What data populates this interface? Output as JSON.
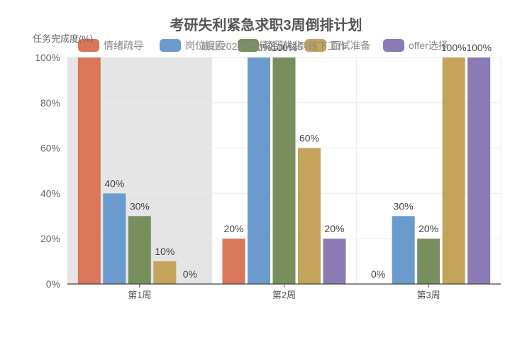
{
  "chart_data": {
    "type": "bar",
    "title": "考研失利紧急求职3周倒排计划",
    "ylabel": "任务完成度(%)",
    "xlabel": "",
    "categories": [
      "第1周",
      "第2周",
      "第3周"
    ],
    "ylim": [
      0,
      100
    ],
    "yticks": [
      "0%",
      "20%",
      "40%",
      "60%",
      "80%",
      "100%"
    ],
    "grid": true,
    "legend_position": "top",
    "highlight_category": "第1周",
    "annotation": "截止2026年5月底前找到线下工作",
    "series": [
      {
        "name": "情绪疏导",
        "values": [
          100,
          20,
          0
        ],
        "color": "#d9775a",
        "labels": [
          "",
          "20%",
          "0%"
        ]
      },
      {
        "name": "岗位搜索",
        "values": [
          40,
          100,
          30
        ],
        "color": "#6a9bcc",
        "labels": [
          "40%",
          "100%",
          "30%"
        ]
      },
      {
        "name": "简历优化",
        "values": [
          30,
          100,
          20
        ],
        "color": "#788f5d",
        "labels": [
          "30%",
          "100%",
          "20%"
        ]
      },
      {
        "name": "面试准备",
        "values": [
          10,
          60,
          100
        ],
        "color": "#c4a35a",
        "labels": [
          "10%",
          "60%",
          "100%"
        ]
      },
      {
        "name": "offer选择",
        "values": [
          0,
          20,
          100
        ],
        "color": "#8a7bb5",
        "labels": [
          "0%",
          "20%",
          "100%"
        ]
      }
    ]
  }
}
